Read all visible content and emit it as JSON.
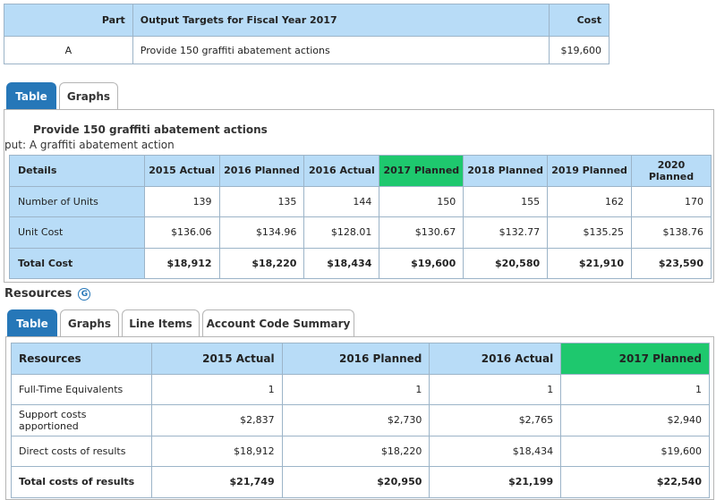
{
  "top_table": {
    "headers": {
      "part": "Part",
      "targets": "Output Targets for Fiscal Year 2017",
      "cost": "Cost"
    },
    "row": {
      "part": "A",
      "target": "Provide 150 graffiti abatement actions",
      "cost": "$19,600"
    }
  },
  "measure_tabs": {
    "table": "Table",
    "graphs": "Graphs"
  },
  "measure": {
    "title": "Provide 150 graffiti abatement actions",
    "subtitle": ":put: A graffiti abatement action",
    "headers": [
      "Details",
      "2015 Actual",
      "2016 Planned",
      "2016 Actual",
      "2017 Planned",
      "2018 Planned",
      "2019 Planned",
      "2020 Planned"
    ],
    "rows": [
      {
        "label": "Number of Units",
        "values": [
          "139",
          "135",
          "144",
          "150",
          "155",
          "162",
          "170"
        ]
      },
      {
        "label": "Unit Cost",
        "values": [
          "$136.06",
          "$134.96",
          "$128.01",
          "$130.67",
          "$132.77",
          "$135.25",
          "$138.76"
        ]
      },
      {
        "label": "Total Cost",
        "values": [
          "$18,912",
          "$18,220",
          "$18,434",
          "$19,600",
          "$20,580",
          "$21,910",
          "$23,590"
        ]
      }
    ]
  },
  "resources": {
    "heading": "Resources",
    "help_icon": "G",
    "tabs": [
      "Table",
      "Graphs",
      "Line Items",
      "Account Code Summary"
    ],
    "headers": [
      "Resources",
      "2015 Actual",
      "2016 Planned",
      "2016 Actual",
      "2017 Planned"
    ],
    "rows": [
      {
        "label": "Full-Time Equivalents",
        "values": [
          "1",
          "1",
          "1",
          "1"
        ]
      },
      {
        "label": "Support costs apportioned",
        "values": [
          "$2,837",
          "$2,730",
          "$2,765",
          "$2,940"
        ]
      },
      {
        "label": "Direct costs of results",
        "values": [
          "$18,912",
          "$18,220",
          "$18,434",
          "$19,600"
        ]
      },
      {
        "label": "Total costs of results",
        "values": [
          "$21,749",
          "$20,950",
          "$21,199",
          "$22,540"
        ]
      }
    ]
  },
  "colors": {
    "header_bg": "#b8dcf7",
    "highlight": "#1ec86e",
    "active_tab": "#2677b8"
  }
}
